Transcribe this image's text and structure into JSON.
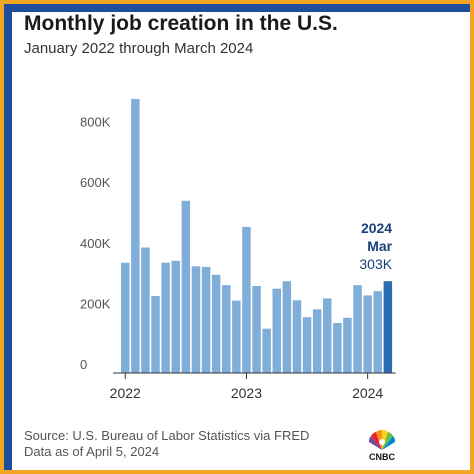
{
  "title": "Monthly job creation in the U.S.",
  "subtitle": "January 2022 through March 2024",
  "source_line1": "Source: U.S. Bureau of Labor Statistics via FRED",
  "source_line2": "Data as of April 5, 2024",
  "logo_text": "CNBC",
  "colors": {
    "bar": "#7faed8",
    "highlight": "#2a6cb0",
    "annotation": "#1b3f7a",
    "border": "#f2a623",
    "frame": "#1f4e9b"
  },
  "chart_data": {
    "type": "bar",
    "x": [
      "Jan 2022",
      "Feb 2022",
      "Mar 2022",
      "Apr 2022",
      "May 2022",
      "Jun 2022",
      "Jul 2022",
      "Aug 2022",
      "Sep 2022",
      "Oct 2022",
      "Nov 2022",
      "Dec 2022",
      "Jan 2023",
      "Feb 2023",
      "Mar 2023",
      "Apr 2023",
      "May 2023",
      "Jun 2023",
      "Jul 2023",
      "Aug 2023",
      "Sep 2023",
      "Oct 2023",
      "Nov 2023",
      "Dec 2023",
      "Jan 2024",
      "Feb 2024",
      "Mar 2024"
    ],
    "values": [
      364000,
      904000,
      414000,
      254000,
      364000,
      370000,
      568000,
      352000,
      350000,
      324000,
      290000,
      239000,
      482000,
      287000,
      146000,
      278000,
      303000,
      240000,
      184000,
      210000,
      246000,
      165000,
      182000,
      290000,
      256000,
      270000,
      303000
    ],
    "ylim": [
      0,
      960000
    ],
    "y_ticks": [
      {
        "value": 0,
        "label": "0"
      },
      {
        "value": 200000,
        "label": "200K"
      },
      {
        "value": 400000,
        "label": "400K"
      },
      {
        "value": 600000,
        "label": "600K"
      },
      {
        "value": 800000,
        "label": "800K"
      }
    ],
    "x_ticks": [
      {
        "index": 0,
        "label": "2022"
      },
      {
        "index": 12,
        "label": "2023"
      },
      {
        "index": 24,
        "label": "2024"
      }
    ],
    "highlight_index": 26,
    "annotation": {
      "year": "2024",
      "month": "Mar",
      "value": "303K"
    },
    "grid": false
  }
}
